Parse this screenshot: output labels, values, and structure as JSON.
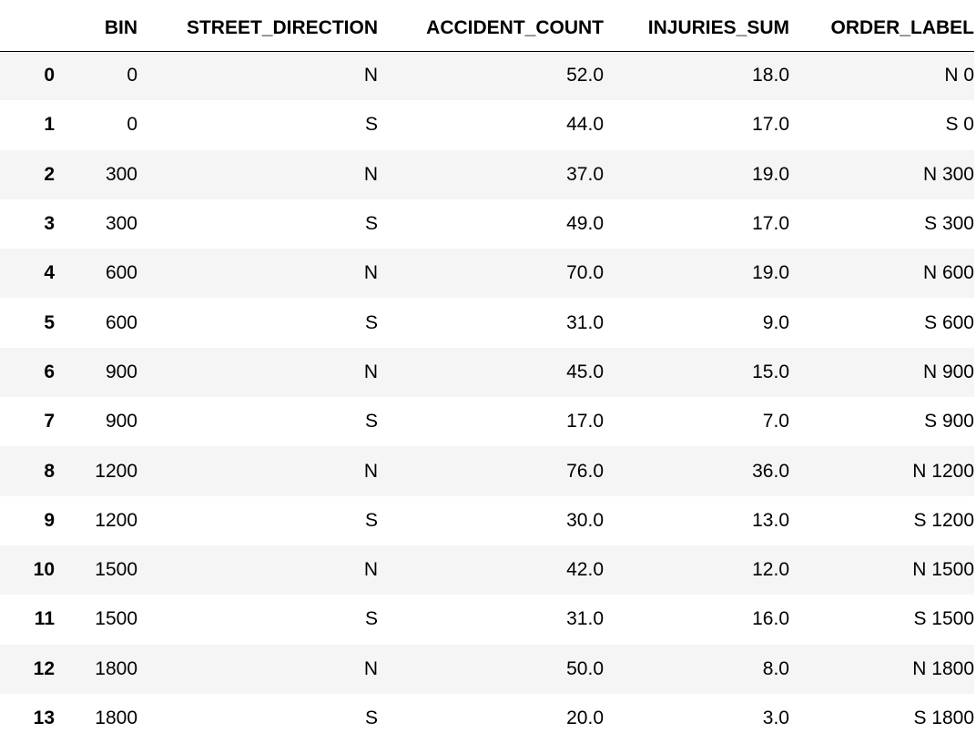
{
  "table": {
    "index_header": "",
    "columns": [
      "BIN",
      "STREET_DIRECTION",
      "ACCIDENT_COUNT",
      "INJURIES_SUM",
      "ORDER_LABEL"
    ],
    "rows": [
      {
        "index": "0",
        "cells": [
          "0",
          "N",
          "52.0",
          "18.0",
          "N 0"
        ]
      },
      {
        "index": "1",
        "cells": [
          "0",
          "S",
          "44.0",
          "17.0",
          "S 0"
        ]
      },
      {
        "index": "2",
        "cells": [
          "300",
          "N",
          "37.0",
          "19.0",
          "N 300"
        ]
      },
      {
        "index": "3",
        "cells": [
          "300",
          "S",
          "49.0",
          "17.0",
          "S 300"
        ]
      },
      {
        "index": "4",
        "cells": [
          "600",
          "N",
          "70.0",
          "19.0",
          "N 600"
        ]
      },
      {
        "index": "5",
        "cells": [
          "600",
          "S",
          "31.0",
          "9.0",
          "S 600"
        ]
      },
      {
        "index": "6",
        "cells": [
          "900",
          "N",
          "45.0",
          "15.0",
          "N 900"
        ]
      },
      {
        "index": "7",
        "cells": [
          "900",
          "S",
          "17.0",
          "7.0",
          "S 900"
        ]
      },
      {
        "index": "8",
        "cells": [
          "1200",
          "N",
          "76.0",
          "36.0",
          "N 1200"
        ]
      },
      {
        "index": "9",
        "cells": [
          "1200",
          "S",
          "30.0",
          "13.0",
          "S 1200"
        ]
      },
      {
        "index": "10",
        "cells": [
          "1500",
          "N",
          "42.0",
          "12.0",
          "N 1500"
        ]
      },
      {
        "index": "11",
        "cells": [
          "1500",
          "S",
          "31.0",
          "16.0",
          "S 1500"
        ]
      },
      {
        "index": "12",
        "cells": [
          "1800",
          "N",
          "50.0",
          "8.0",
          "N 1800"
        ]
      },
      {
        "index": "13",
        "cells": [
          "1800",
          "S",
          "20.0",
          "3.0",
          "S 1800"
        ]
      }
    ]
  }
}
